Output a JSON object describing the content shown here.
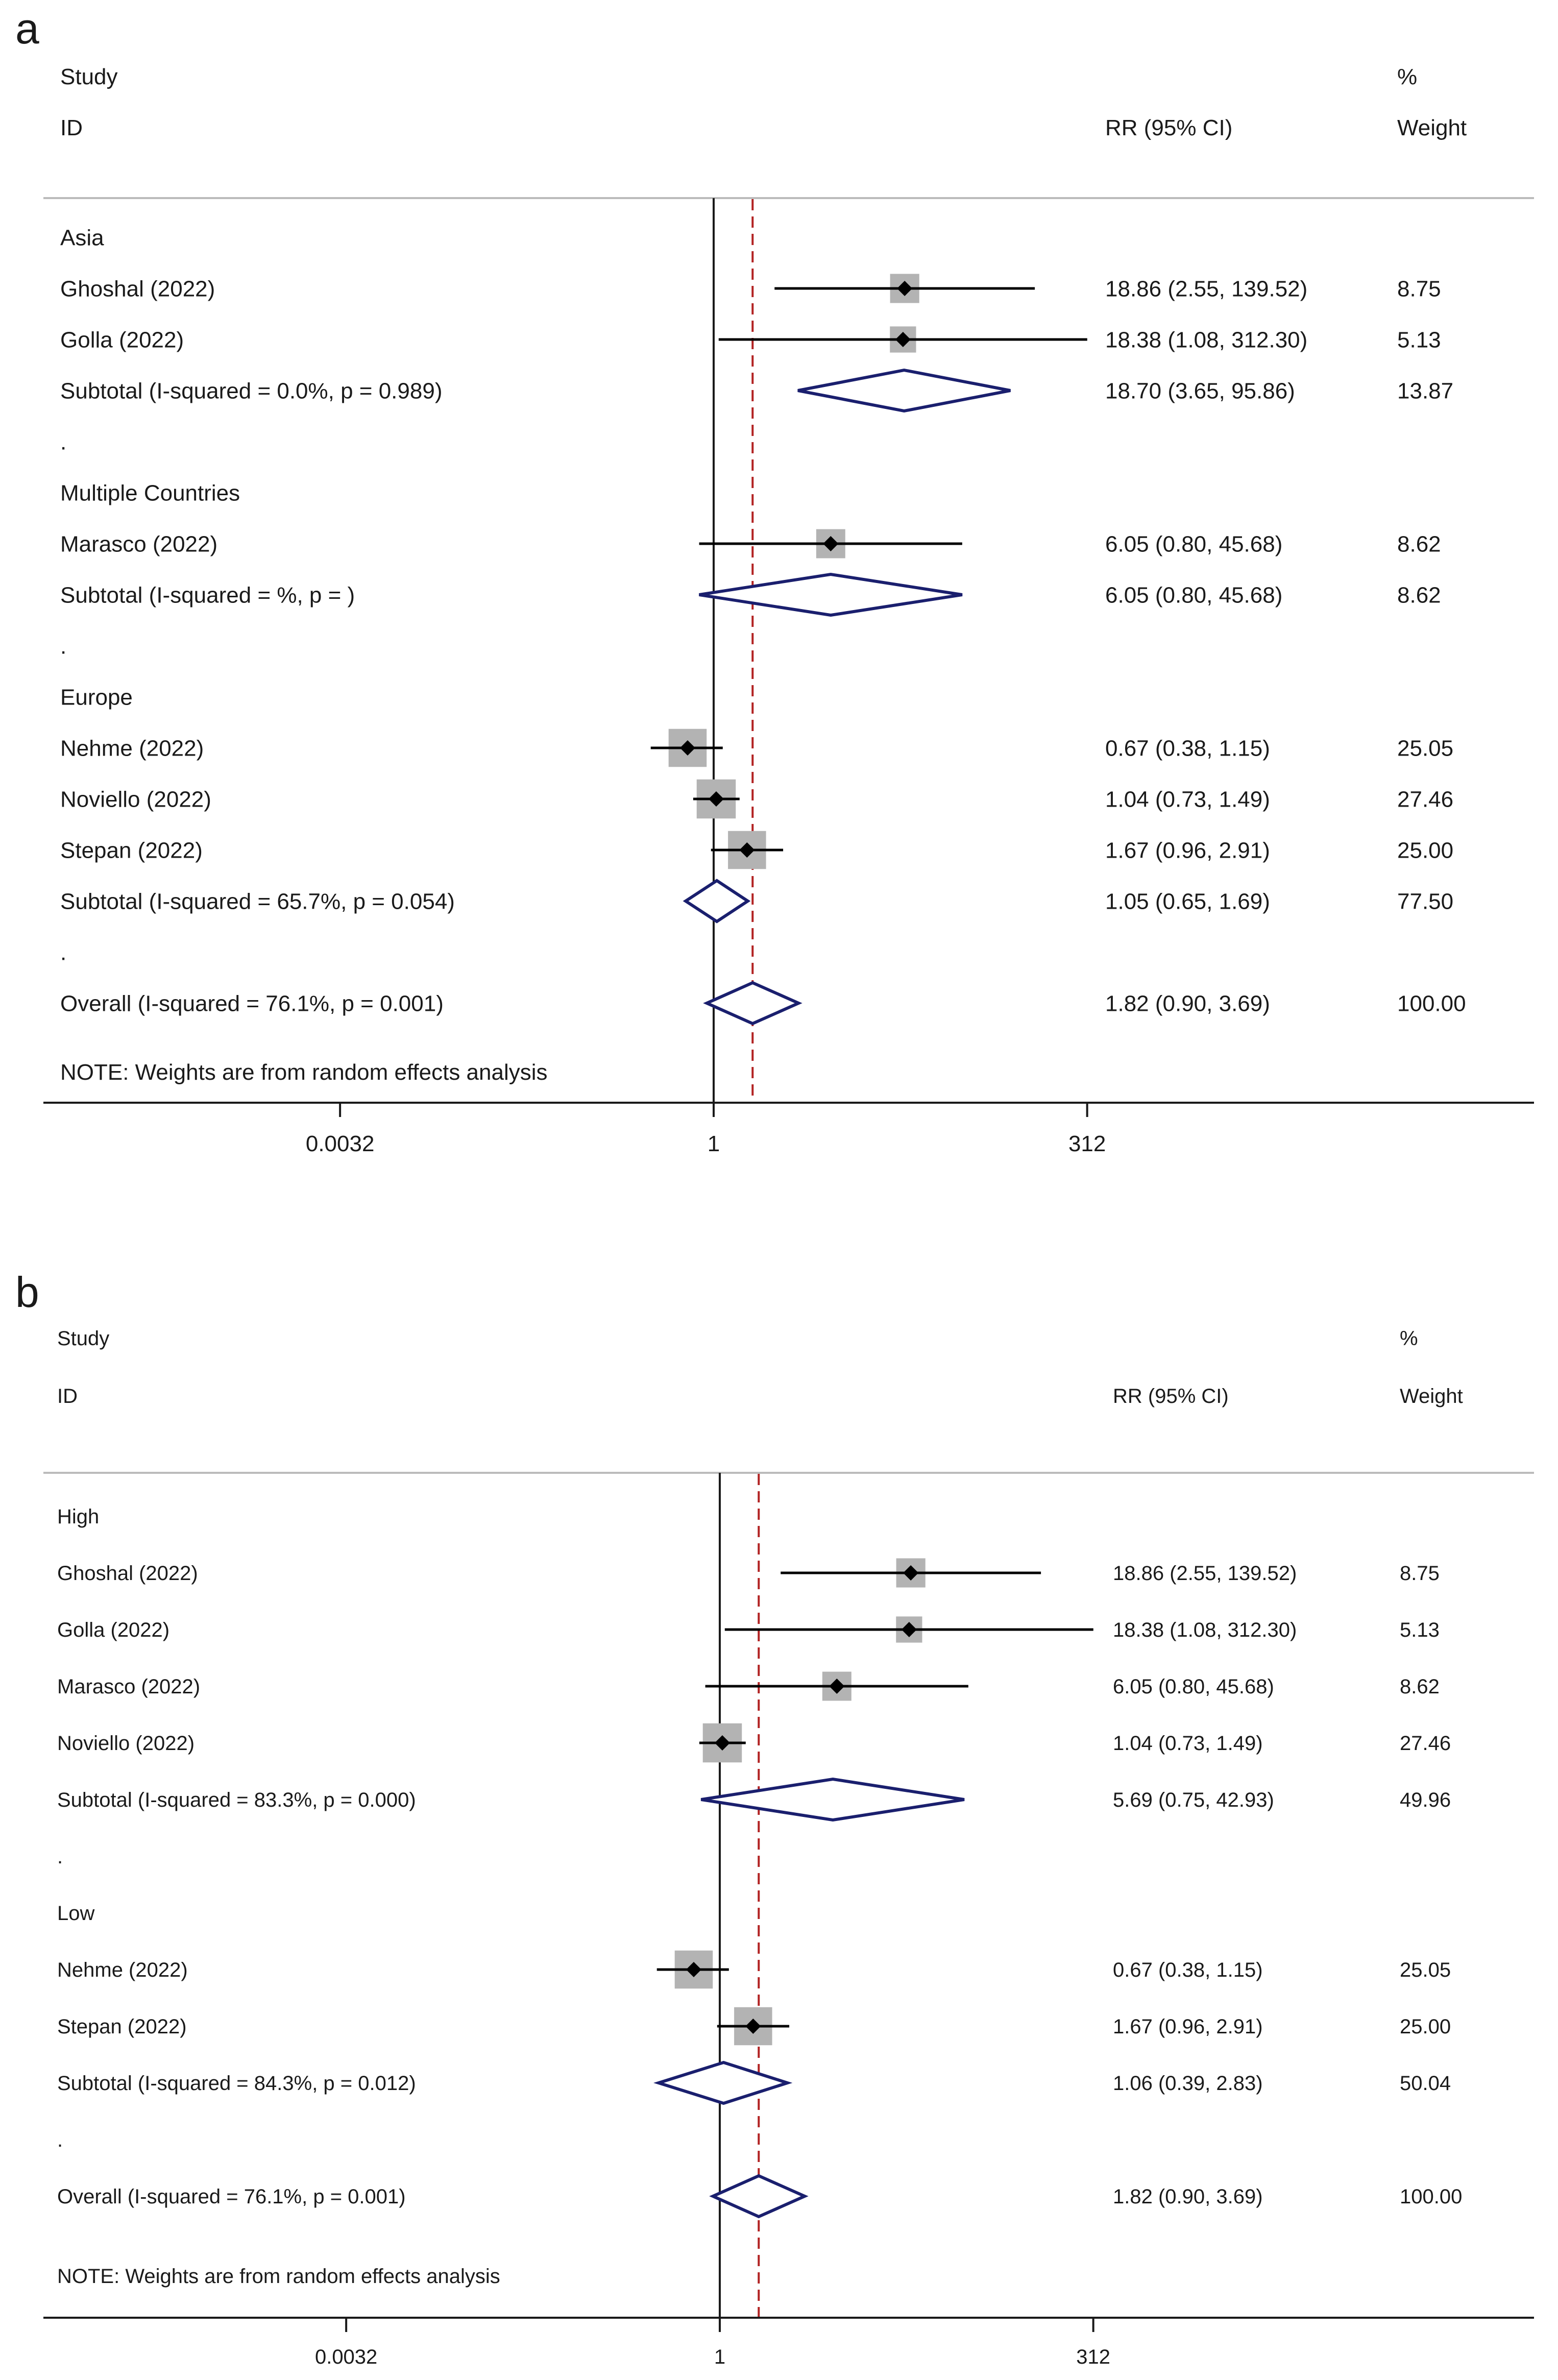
{
  "colors": {
    "text": "#1a1a1a",
    "separator": "#bbbbbb",
    "axis": "#1a1a1a",
    "null_line": "#1a1a1a",
    "overall_line": "#b22222",
    "diamond": "#1a1f6e",
    "weight_box": "#b3b3b3",
    "ci_line": "#000000"
  },
  "chart_data": [
    {
      "type": "forest",
      "panel_label": "a",
      "headers": {
        "study": "Study",
        "id": "ID",
        "pct": "%",
        "effect": "RR (95% CI)",
        "weight": "Weight"
      },
      "axis": {
        "scale": "log",
        "ticks": [
          0.0032,
          1,
          312
        ],
        "tick_labels": [
          "0.0032",
          "1",
          "312"
        ],
        "range": [
          0.0032,
          312
        ],
        "null_value": 1
      },
      "overall_rr": 1.82,
      "rows": [
        {
          "kind": "group",
          "label": "Asia"
        },
        {
          "kind": "study",
          "label": "Ghoshal (2022)",
          "rr": 18.86,
          "lo": 2.55,
          "hi": 139.52,
          "ci_text": "18.86 (2.55, 139.52)",
          "weight": 8.75,
          "weight_text": "8.75"
        },
        {
          "kind": "study",
          "label": "Golla (2022)",
          "rr": 18.38,
          "lo": 1.08,
          "hi": 312.3,
          "ci_text": "18.38 (1.08, 312.30)",
          "weight": 5.13,
          "weight_text": "5.13"
        },
        {
          "kind": "subtotal",
          "label": "Subtotal  (I-squared = 0.0%, p = 0.989)",
          "rr": 18.7,
          "lo": 3.65,
          "hi": 95.86,
          "ci_text": "18.70 (3.65, 95.86)",
          "weight_text": "13.87"
        },
        {
          "kind": "dot",
          "label": "."
        },
        {
          "kind": "group",
          "label": "Multiple Countries"
        },
        {
          "kind": "study",
          "label": "Marasco (2022)",
          "rr": 6.05,
          "lo": 0.8,
          "hi": 45.68,
          "ci_text": "6.05 (0.80, 45.68)",
          "weight": 8.62,
          "weight_text": "8.62"
        },
        {
          "kind": "subtotal",
          "label": "Subtotal  (I-squared =  %, p =  )",
          "rr": 6.05,
          "lo": 0.8,
          "hi": 45.68,
          "ci_text": "6.05 (0.80, 45.68)",
          "weight_text": "8.62"
        },
        {
          "kind": "dot",
          "label": "."
        },
        {
          "kind": "group",
          "label": "Europe"
        },
        {
          "kind": "study",
          "label": "Nehme (2022)",
          "rr": 0.67,
          "lo": 0.38,
          "hi": 1.15,
          "ci_text": "0.67 (0.38, 1.15)",
          "weight": 25.05,
          "weight_text": "25.05"
        },
        {
          "kind": "study",
          "label": "Noviello (2022)",
          "rr": 1.04,
          "lo": 0.73,
          "hi": 1.49,
          "ci_text": "1.04 (0.73, 1.49)",
          "weight": 27.46,
          "weight_text": "27.46"
        },
        {
          "kind": "study",
          "label": "Stepan (2022)",
          "rr": 1.67,
          "lo": 0.96,
          "hi": 2.91,
          "ci_text": "1.67 (0.96, 2.91)",
          "weight": 25.0,
          "weight_text": "25.00"
        },
        {
          "kind": "subtotal",
          "label": "Subtotal  (I-squared = 65.7%, p = 0.054)",
          "rr": 1.05,
          "lo": 0.65,
          "hi": 1.69,
          "ci_text": "1.05 (0.65, 1.69)",
          "weight_text": "77.50"
        },
        {
          "kind": "dot",
          "label": "."
        },
        {
          "kind": "overall",
          "label": "Overall  (I-squared = 76.1%, p = 0.001)",
          "rr": 1.82,
          "lo": 0.9,
          "hi": 3.69,
          "ci_text": "1.82 (0.90, 3.69)",
          "weight_text": "100.00"
        }
      ],
      "note": "NOTE: Weights are from random effects analysis"
    },
    {
      "type": "forest",
      "panel_label": "b",
      "headers": {
        "study": "Study",
        "id": "ID",
        "pct": "%",
        "effect": "RR (95% CI)",
        "weight": "Weight"
      },
      "axis": {
        "scale": "log",
        "ticks": [
          0.0032,
          1,
          312
        ],
        "tick_labels": [
          "0.0032",
          "1",
          "312"
        ],
        "range": [
          0.0032,
          312
        ],
        "null_value": 1
      },
      "overall_rr": 1.82,
      "rows": [
        {
          "kind": "group",
          "label": "High"
        },
        {
          "kind": "study",
          "label": "Ghoshal (2022)",
          "rr": 18.86,
          "lo": 2.55,
          "hi": 139.52,
          "ci_text": "18.86 (2.55, 139.52)",
          "weight": 8.75,
          "weight_text": "8.75"
        },
        {
          "kind": "study",
          "label": "Golla (2022)",
          "rr": 18.38,
          "lo": 1.08,
          "hi": 312.3,
          "ci_text": "18.38 (1.08, 312.30)",
          "weight": 5.13,
          "weight_text": "5.13"
        },
        {
          "kind": "study",
          "label": "Marasco (2022)",
          "rr": 6.05,
          "lo": 0.8,
          "hi": 45.68,
          "ci_text": "6.05 (0.80, 45.68)",
          "weight": 8.62,
          "weight_text": "8.62"
        },
        {
          "kind": "study",
          "label": "Noviello (2022)",
          "rr": 1.04,
          "lo": 0.73,
          "hi": 1.49,
          "ci_text": "1.04 (0.73, 1.49)",
          "weight": 27.46,
          "weight_text": "27.46"
        },
        {
          "kind": "subtotal",
          "label": "Subtotal  (I-squared = 83.3%, p = 0.000)",
          "rr": 5.69,
          "lo": 0.75,
          "hi": 42.93,
          "ci_text": "5.69 (0.75, 42.93)",
          "weight_text": "49.96"
        },
        {
          "kind": "dot",
          "label": "."
        },
        {
          "kind": "group",
          "label": "Low"
        },
        {
          "kind": "study",
          "label": "Nehme (2022)",
          "rr": 0.67,
          "lo": 0.38,
          "hi": 1.15,
          "ci_text": "0.67 (0.38, 1.15)",
          "weight": 25.05,
          "weight_text": "25.05"
        },
        {
          "kind": "study",
          "label": "Stepan (2022)",
          "rr": 1.67,
          "lo": 0.96,
          "hi": 2.91,
          "ci_text": "1.67 (0.96, 2.91)",
          "weight": 25.0,
          "weight_text": "25.00"
        },
        {
          "kind": "subtotal",
          "label": "Subtotal  (I-squared = 84.3%, p = 0.012)",
          "rr": 1.06,
          "lo": 0.39,
          "hi": 2.83,
          "ci_text": "1.06 (0.39, 2.83)",
          "weight_text": "50.04"
        },
        {
          "kind": "dot",
          "label": "."
        },
        {
          "kind": "overall",
          "label": "Overall  (I-squared = 76.1%, p = 0.001)",
          "rr": 1.82,
          "lo": 0.9,
          "hi": 3.69,
          "ci_text": "1.82 (0.90, 3.69)",
          "weight_text": "100.00"
        }
      ],
      "note": "NOTE: Weights are from random effects analysis"
    }
  ]
}
